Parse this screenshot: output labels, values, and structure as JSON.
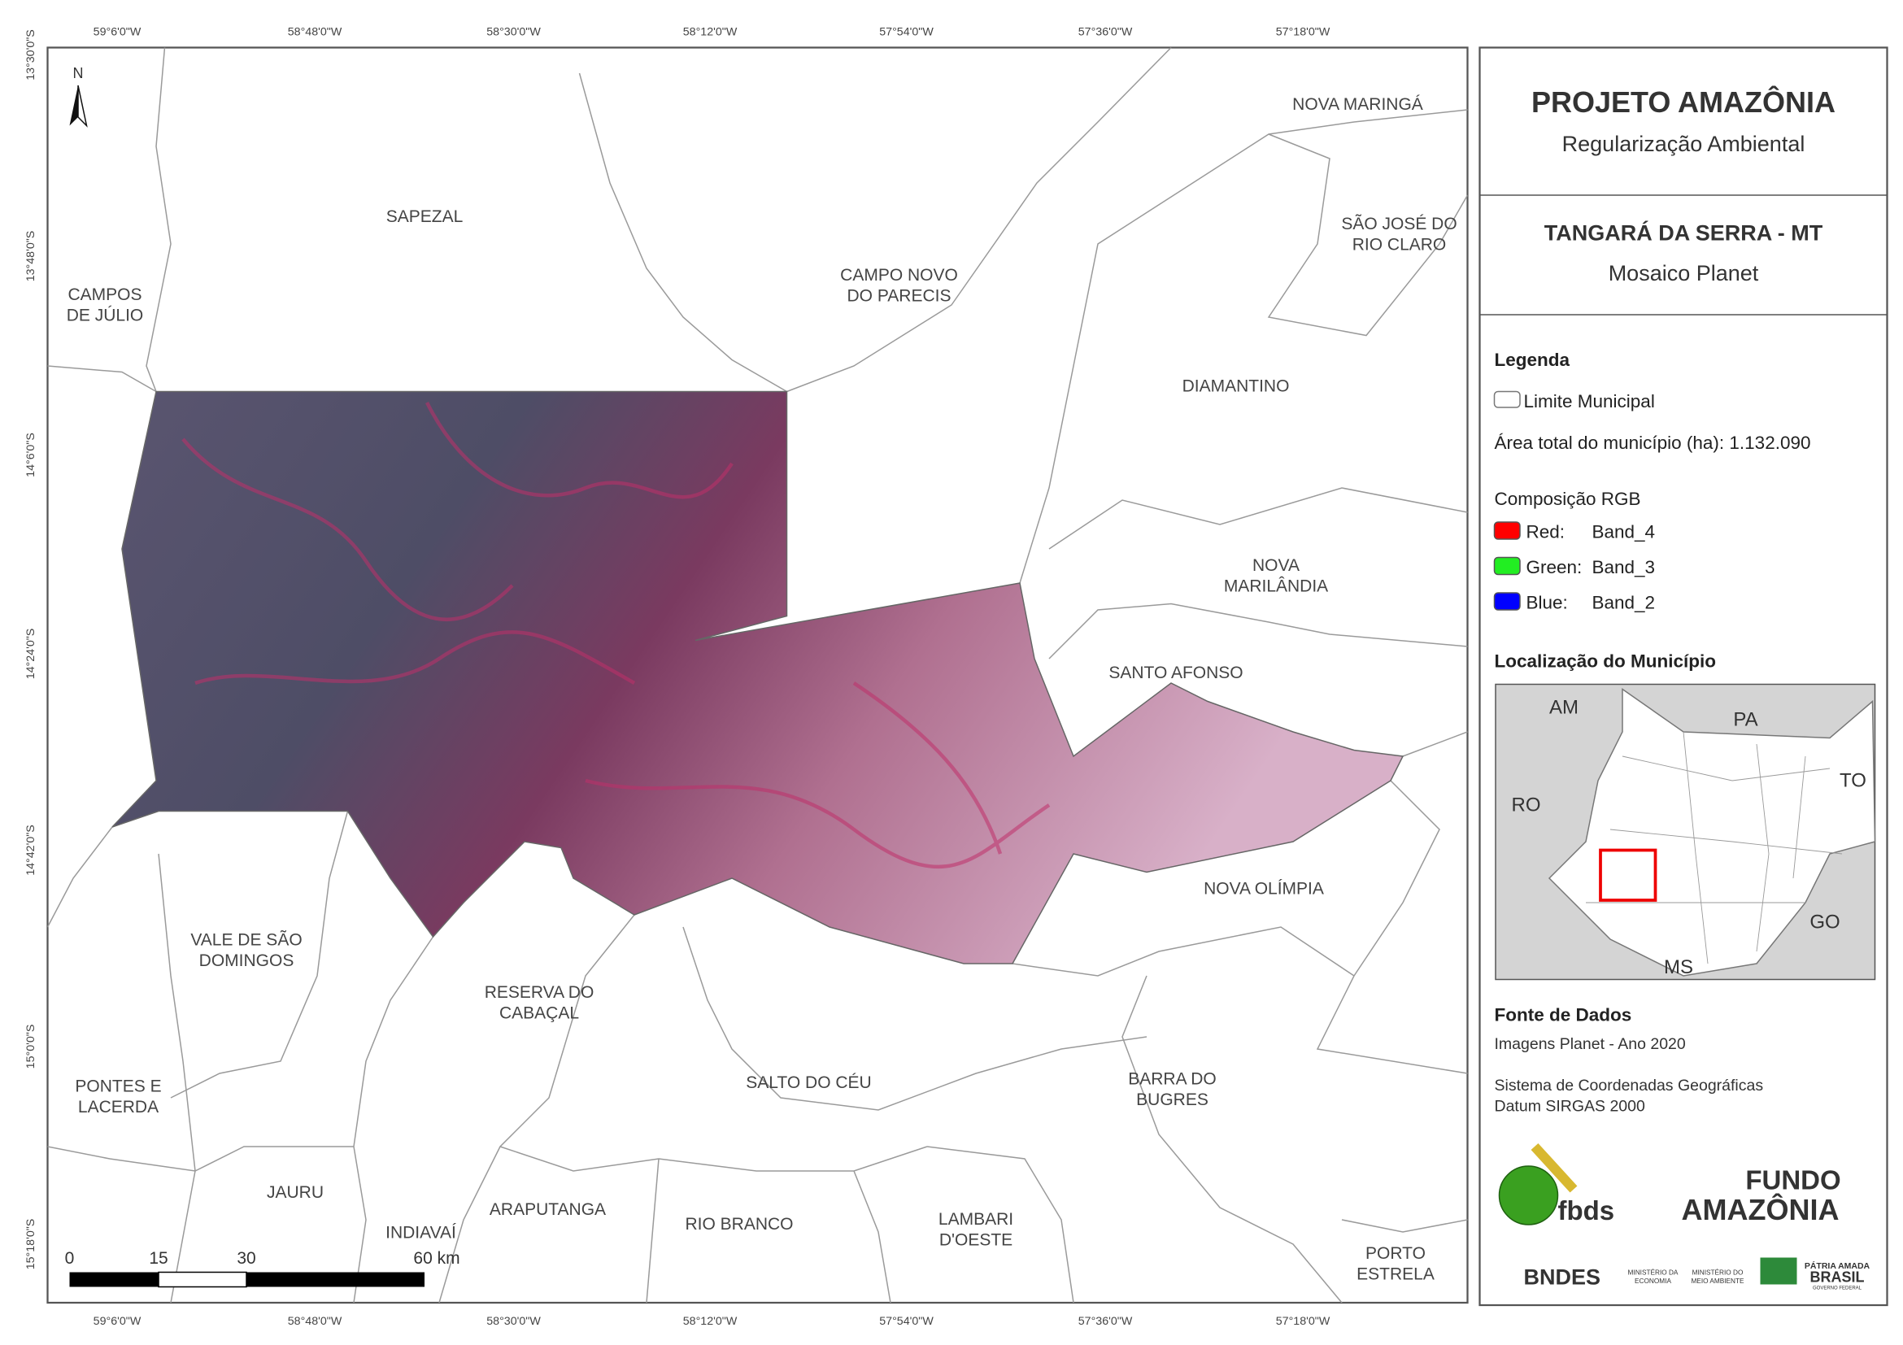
{
  "map": {
    "top_labels": [
      "59°6'0\"W",
      "58°48'0\"W",
      "58°30'0\"W",
      "58°12'0\"W",
      "57°54'0\"W",
      "57°36'0\"W",
      "57°18'0\"W"
    ],
    "bottom_labels": [
      "59°6'0\"W",
      "58°48'0\"W",
      "58°30'0\"W",
      "58°12'0\"W",
      "57°54'0\"W",
      "57°36'0\"W",
      "57°18'0\"W"
    ],
    "left_labels": [
      "13°30'0\"S",
      "13°48'0\"S",
      "14°6'0\"S",
      "14°24'0\"S",
      "14°42'0\"S",
      "15°0'0\"S",
      "15°18'0\"S"
    ],
    "north": "N",
    "municipalities": [
      {
        "lines": [
          "SAPEZAL"
        ]
      },
      {
        "lines": [
          "CAMPOS",
          "DE JÚLIO"
        ]
      },
      {
        "lines": [
          "CAMPO NOVO",
          "DO PARECIS"
        ]
      },
      {
        "lines": [
          "NOVA MARINGÁ"
        ]
      },
      {
        "lines": [
          "SÃO JOSÉ DO",
          "RIO CLARO"
        ]
      },
      {
        "lines": [
          "DIAMANTINO"
        ]
      },
      {
        "lines": [
          "NOVA",
          "MARILÂNDIA"
        ]
      },
      {
        "lines": [
          "SANTO AFONSO"
        ]
      },
      {
        "lines": [
          "NOVA OLÍMPIA"
        ]
      },
      {
        "lines": [
          "VALE DE SÃO",
          "DOMINGOS"
        ]
      },
      {
        "lines": [
          "RESERVA DO",
          "CABAÇAL"
        ]
      },
      {
        "lines": [
          "SALTO DO CÉU"
        ]
      },
      {
        "lines": [
          "BARRA DO",
          "BUGRES"
        ]
      },
      {
        "lines": [
          "PONTES E",
          "LACERDA"
        ]
      },
      {
        "lines": [
          "JAURU"
        ]
      },
      {
        "lines": [
          "ARAPUTANGA"
        ]
      },
      {
        "lines": [
          "INDIAVAÍ"
        ]
      },
      {
        "lines": [
          "RIO BRANCO"
        ]
      },
      {
        "lines": [
          "LAMBARI",
          "D'OESTE"
        ]
      },
      {
        "lines": [
          "PORTO",
          "ESTRELA"
        ]
      }
    ],
    "scale_labels": [
      "0",
      "15",
      "30",
      "60 km"
    ]
  },
  "panel": {
    "title": "PROJETO AMAZÔNIA",
    "subtitle": "Regularização Ambiental",
    "place": "TANGARÁ DA SERRA - MT",
    "product": "Mosaico Planet",
    "legend_heading": "Legenda",
    "limit_label": "Limite Municipal",
    "area_label": "Área total do município (ha): 1.132.090",
    "rgb_heading": "Composição RGB",
    "bands": [
      {
        "channel": "Red:",
        "band": "Band_4"
      },
      {
        "channel": "Green:",
        "band": "Band_3"
      },
      {
        "channel": "Blue:",
        "band": "Band_2"
      }
    ],
    "location_heading": "Localização do Município",
    "inset_labels": [
      "AM",
      "PA",
      "RO",
      "TO",
      "GO",
      "MS"
    ],
    "source_heading": "Fonte de Dados",
    "source_lines": [
      "Imagens Planet - Ano 2020",
      "Sistema de Coordenadas Geográficas",
      "Datum SIRGAS 2000"
    ],
    "logos": [
      "fbds",
      "FUNDO",
      "AMAZÔNIA",
      "BNDES",
      "MINISTÉRIO DA",
      "ECONOMIA",
      "MINISTÉRIO DO",
      "MEIO AMBIENTE",
      "PÁTRIA AMADA",
      "BRASIL",
      "GOVERNO FEDERAL"
    ]
  }
}
